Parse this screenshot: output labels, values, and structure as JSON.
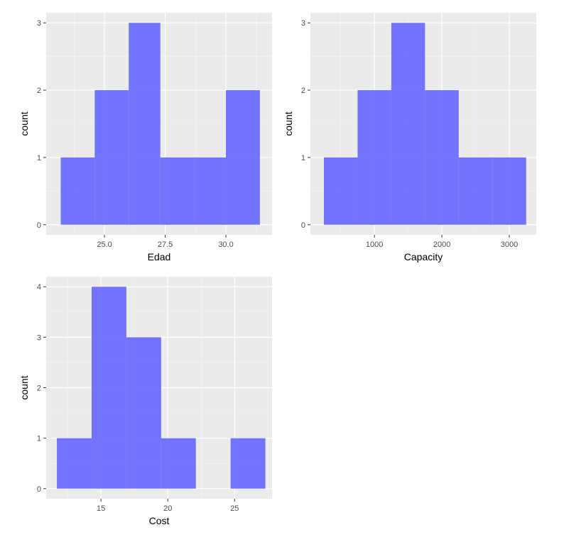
{
  "colors": {
    "panel_background": "#EBEBEB",
    "grid_major": "#FFFFFF",
    "grid_minor": "#F5F5F5",
    "bar_fill": "#6666FF",
    "bar_opacity": 0.9,
    "tick": "#333333"
  },
  "chart_data": [
    {
      "type": "bar",
      "subtype": "histogram",
      "xlabel": "Edad",
      "ylabel": "count",
      "xlim": [
        22.6,
        31.9
      ],
      "ylim": [
        -0.15,
        3.15
      ],
      "x_ticks": [
        25.0,
        27.5,
        30.0
      ],
      "x_tick_labels": [
        "25.0",
        "27.5",
        "30.0"
      ],
      "x_minor": [
        23.75,
        26.25,
        28.75,
        31.25
      ],
      "y_ticks": [
        0,
        1,
        2,
        3
      ],
      "y_tick_labels": [
        "0",
        "1",
        "2",
        "3"
      ],
      "bins": [
        {
          "x0": 23.2,
          "x1": 24.6,
          "count": 1
        },
        {
          "x0": 24.6,
          "x1": 26.0,
          "count": 2
        },
        {
          "x0": 26.0,
          "x1": 27.3,
          "count": 3
        },
        {
          "x0": 27.3,
          "x1": 28.7,
          "count": 1
        },
        {
          "x0": 28.7,
          "x1": 30.0,
          "count": 1
        },
        {
          "x0": 30.0,
          "x1": 31.4,
          "count": 2
        }
      ],
      "grid": true
    },
    {
      "type": "bar",
      "subtype": "histogram",
      "xlabel": "Capacity",
      "ylabel": "count",
      "xlim": [
        50,
        3400
      ],
      "ylim": [
        -0.15,
        3.15
      ],
      "x_ticks": [
        1000,
        2000,
        3000
      ],
      "x_tick_labels": [
        "1000",
        "2000",
        "3000"
      ],
      "x_minor": [
        500,
        1500,
        2500
      ],
      "y_ticks": [
        0,
        1,
        2,
        3
      ],
      "y_tick_labels": [
        "0",
        "1",
        "2",
        "3"
      ],
      "bins": [
        {
          "x0": 250,
          "x1": 750,
          "count": 1
        },
        {
          "x0": 750,
          "x1": 1250,
          "count": 2
        },
        {
          "x0": 1250,
          "x1": 1750,
          "count": 3
        },
        {
          "x0": 1750,
          "x1": 2250,
          "count": 2
        },
        {
          "x0": 2250,
          "x1": 2750,
          "count": 1
        },
        {
          "x0": 2750,
          "x1": 3250,
          "count": 1
        }
      ],
      "grid": true
    },
    {
      "type": "bar",
      "subtype": "histogram",
      "xlabel": "Cost",
      "ylabel": "count",
      "xlim": [
        10.9,
        27.8
      ],
      "ylim": [
        -0.2,
        4.2
      ],
      "x_ticks": [
        15,
        20,
        25
      ],
      "x_tick_labels": [
        "15",
        "20",
        "25"
      ],
      "x_minor": [
        12.5,
        17.5,
        22.5,
        27.5
      ],
      "y_ticks": [
        0,
        1,
        2,
        3,
        4
      ],
      "y_tick_labels": [
        "0",
        "1",
        "2",
        "3",
        "4"
      ],
      "y_minor": [
        0.5,
        1.5,
        2.5,
        3.5
      ],
      "bins": [
        {
          "x0": 11.7,
          "x1": 14.3,
          "count": 1
        },
        {
          "x0": 14.3,
          "x1": 16.9,
          "count": 4
        },
        {
          "x0": 16.9,
          "x1": 19.5,
          "count": 3
        },
        {
          "x0": 19.5,
          "x1": 22.1,
          "count": 1
        },
        {
          "x0": 22.1,
          "x1": 24.7,
          "count": 0
        },
        {
          "x0": 24.7,
          "x1": 27.3,
          "count": 1
        }
      ],
      "grid": true
    }
  ]
}
